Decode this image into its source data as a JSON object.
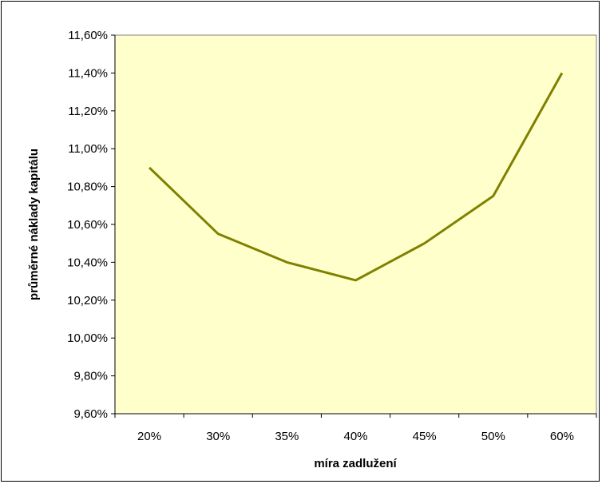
{
  "chart_data": {
    "type": "line",
    "categories": [
      "20%",
      "30%",
      "35%",
      "40%",
      "45%",
      "50%",
      "60%"
    ],
    "series": [
      {
        "values": [
          10.9,
          10.55,
          10.4,
          10.305,
          10.5,
          10.75,
          11.4
        ]
      }
    ],
    "xlabel": "míra zadlužení",
    "ylabel": "průměrné náklady kapitálu",
    "ylim": [
      9.6,
      11.6
    ],
    "yticks": [
      "9,60%",
      "9,80%",
      "10,00%",
      "10,20%",
      "10,40%",
      "10,60%",
      "10,80%",
      "11,00%",
      "11,20%",
      "11,40%",
      "11,60%"
    ],
    "ytick_values": [
      9.6,
      9.8,
      10.0,
      10.2,
      10.4,
      10.6,
      10.8,
      11.0,
      11.2,
      11.4,
      11.6
    ],
    "grid": false,
    "legend": "none"
  },
  "colors": {
    "plot_background": "#ffffcc",
    "line": "#808000",
    "axis": "#000000"
  }
}
